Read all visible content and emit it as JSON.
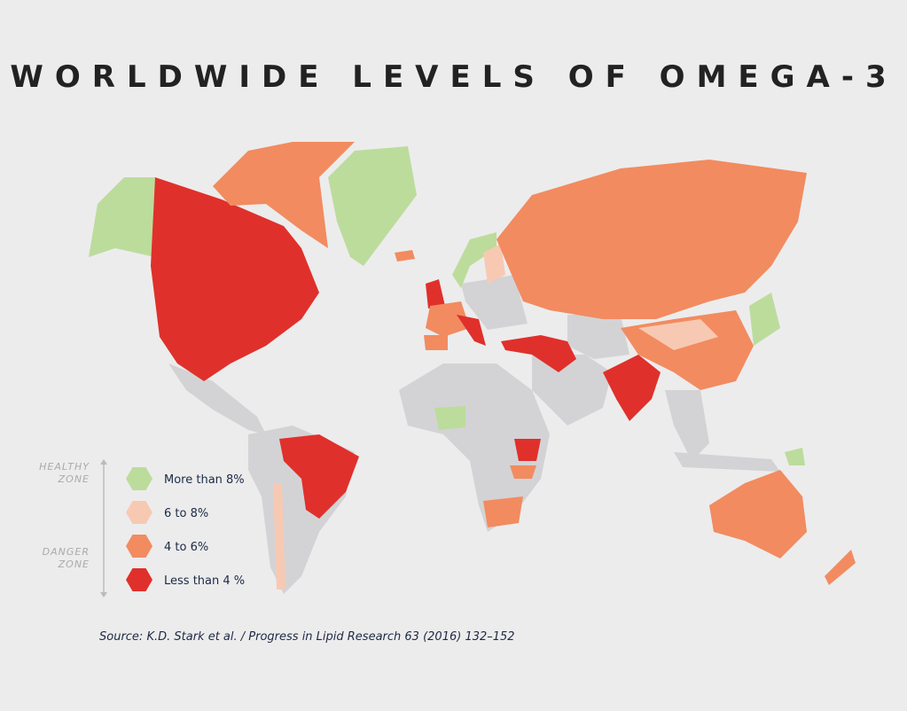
{
  "title": "WORLDWIDE LEVELS OF OMEGA-3",
  "zones": [
    {
      "lines": [
        "HEALTHY",
        "ZONE"
      ]
    },
    {
      "lines": [
        "DANGER",
        "ZONE"
      ]
    }
  ],
  "legend": [
    {
      "label": "More than 8%",
      "color": "#bcdc9c"
    },
    {
      "label": "6 to 8%",
      "color": "#f8c9b2"
    },
    {
      "label": "4 to 6%",
      "color": "#f28b60"
    },
    {
      "label": "Less than 4 %",
      "color": "#e0302b"
    }
  ],
  "source": "Source: K.D. Stark et al. / Progress in Lipid Research 63 (2016) 132–152"
}
